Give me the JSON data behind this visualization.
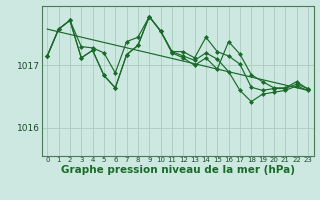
{
  "background_color": "#cce8e0",
  "grid_color": "#aaccbe",
  "line_color": "#1a6b2a",
  "marker_color": "#1a6b2a",
  "xlabel": "Graphe pression niveau de la mer (hPa)",
  "xlabel_fontsize": 7.5,
  "ytick_labels": [
    "1016",
    "1017"
  ],
  "ytick_values": [
    1016.0,
    1017.0
  ],
  "ylim": [
    1015.55,
    1017.95
  ],
  "xlim": [
    -0.5,
    23.5
  ],
  "xtick_labels": [
    "0",
    "1",
    "2",
    "3",
    "4",
    "5",
    "6",
    "7",
    "8",
    "9",
    "10",
    "11",
    "12",
    "13",
    "14",
    "15",
    "16",
    "17",
    "18",
    "19",
    "20",
    "21",
    "22",
    "23"
  ],
  "series1": [
    1017.15,
    1017.58,
    1017.72,
    1017.3,
    1017.28,
    1017.2,
    1016.88,
    1017.38,
    1017.45,
    1017.78,
    1017.55,
    1017.22,
    1017.22,
    1017.12,
    1017.45,
    1017.22,
    1017.15,
    1017.02,
    1016.65,
    1016.6,
    1016.63,
    1016.63,
    1016.7,
    1016.63
  ],
  "series2": [
    1017.15,
    1017.58,
    1017.72,
    1017.12,
    1017.24,
    1016.84,
    1016.64,
    1017.17,
    1017.32,
    1017.78,
    1017.55,
    1017.22,
    1017.15,
    1017.08,
    1017.2,
    1017.1,
    1016.9,
    1016.6,
    1016.42,
    1016.54,
    1016.57,
    1016.6,
    1016.67,
    1016.6
  ],
  "series3": [
    1017.15,
    1017.58,
    1017.72,
    1017.12,
    1017.24,
    1016.84,
    1016.64,
    1017.17,
    1017.32,
    1017.78,
    1017.55,
    1017.2,
    1017.12,
    1017.0,
    1017.12,
    1016.94,
    1017.38,
    1017.18,
    1016.85,
    1016.74,
    1016.64,
    1016.64,
    1016.74,
    1016.62
  ],
  "trend_x": [
    0,
    23
  ],
  "trend_y": [
    1017.58,
    1016.6
  ]
}
